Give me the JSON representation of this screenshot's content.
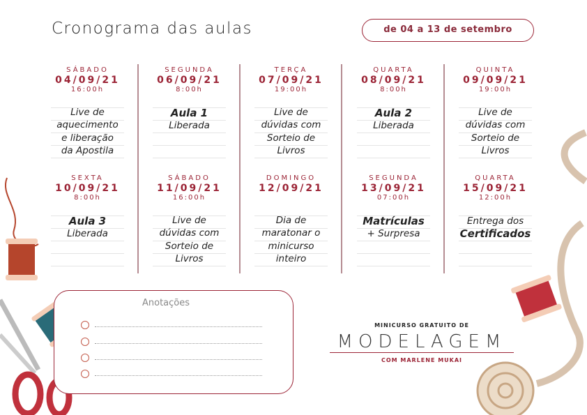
{
  "header": {
    "title": "Cronograma das aulas",
    "date_range": "de 04 a 13 de setembro"
  },
  "schedule": [
    {
      "day": "SÁBADO",
      "date": "04/09/21",
      "time": "16:00h",
      "lines": [
        {
          "t": "Live de",
          "b": false
        },
        {
          "t": "aquecimento",
          "b": false
        },
        {
          "t": "e liberação",
          "b": false
        },
        {
          "t": "da Apostila",
          "b": false
        }
      ]
    },
    {
      "day": "SEGUNDA",
      "date": "06/09/21",
      "time": "8:00h",
      "lines": [
        {
          "t": "Aula 1",
          "b": true
        },
        {
          "t": "Liberada",
          "b": false
        }
      ]
    },
    {
      "day": "TERÇA",
      "date": "07/09/21",
      "time": "19:00h",
      "lines": [
        {
          "t": "Live de",
          "b": false
        },
        {
          "t": "dúvidas com",
          "b": false
        },
        {
          "t": "Sorteio de",
          "b": false
        },
        {
          "t": "Livros",
          "b": false
        }
      ]
    },
    {
      "day": "QUARTA",
      "date": "08/09/21",
      "time": "8:00h",
      "lines": [
        {
          "t": "Aula 2",
          "b": true
        },
        {
          "t": "Liberada",
          "b": false
        }
      ]
    },
    {
      "day": "QUINTA",
      "date": "09/09/21",
      "time": "19:00h",
      "lines": [
        {
          "t": "Live de",
          "b": false
        },
        {
          "t": "dúvidas com",
          "b": false
        },
        {
          "t": "Sorteio de",
          "b": false
        },
        {
          "t": "Livros",
          "b": false
        }
      ]
    },
    {
      "day": "SEXTA",
      "date": "10/09/21",
      "time": "8:00h",
      "lines": [
        {
          "t": "Aula 3",
          "b": true
        },
        {
          "t": "Liberada",
          "b": false
        }
      ]
    },
    {
      "day": "SÁBADO",
      "date": "11/09/21",
      "time": "16:00h",
      "lines": [
        {
          "t": "Live de",
          "b": false
        },
        {
          "t": "dúvidas com",
          "b": false
        },
        {
          "t": "Sorteio de",
          "b": false
        },
        {
          "t": "Livros",
          "b": false
        }
      ]
    },
    {
      "day": "DOMINGO",
      "date": "12/09/21",
      "time": "",
      "lines": [
        {
          "t": "Dia de",
          "b": false
        },
        {
          "t": "maratonar o",
          "b": false
        },
        {
          "t": "minicurso",
          "b": false
        },
        {
          "t": "inteiro",
          "b": false
        }
      ]
    },
    {
      "day": "SEGUNDA",
      "date": "13/09/21",
      "time": "07:00h",
      "lines": [
        {
          "t": "Matrículas",
          "b": true
        },
        {
          "t": "+ Surpresa",
          "b": false
        }
      ]
    },
    {
      "day": "QUARTA",
      "date": "15/09/21",
      "time": "12:00h",
      "lines": [
        {
          "t": "Entrega dos",
          "b": false
        },
        {
          "t": "Certificados",
          "b": true
        }
      ]
    }
  ],
  "notes": {
    "title": "Anotações",
    "rows": 4
  },
  "brand": {
    "line1": "MINICURSO GRATUITO DE",
    "line2": "MODELAGEM",
    "line3": "COM MARLENE MUKAI"
  },
  "colors": {
    "accent": "#9b2335",
    "divider": "#b58c92"
  }
}
